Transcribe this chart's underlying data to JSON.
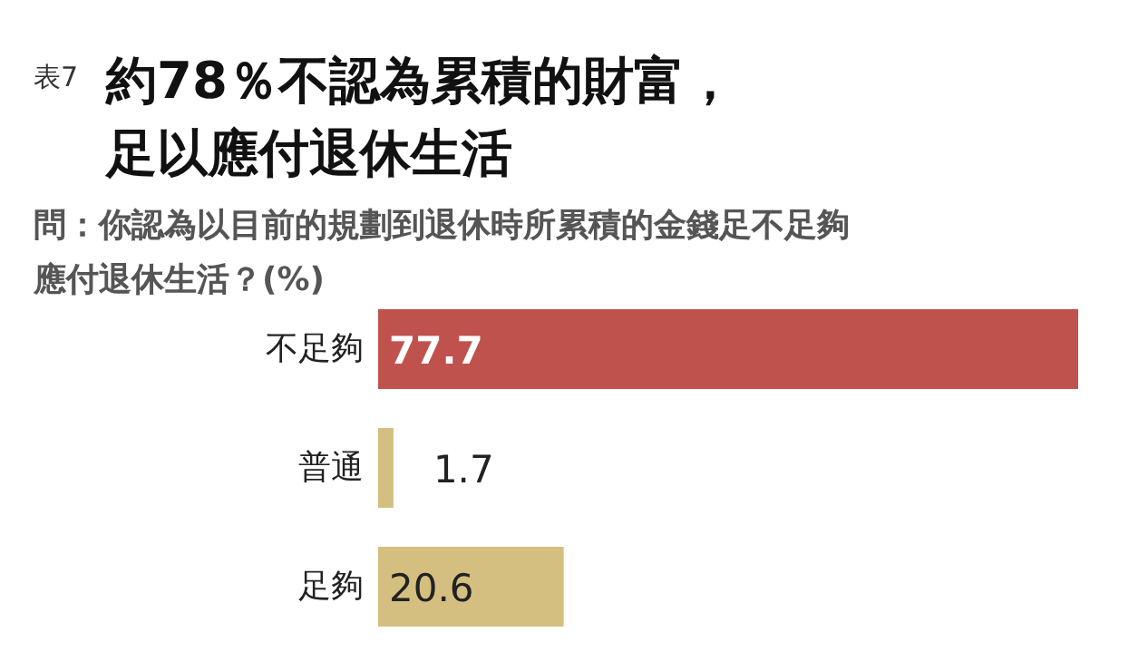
{
  "chart_data": {
    "type": "bar",
    "orientation": "horizontal",
    "title": "約78％不認為累積的財富，足以應付退休生活",
    "subtitle": "問：你認為以目前的規劃到退休時所累積的金錢足不足夠應付退休生活？(%)",
    "annotations": [
      "表7"
    ],
    "categories": [
      "不足夠",
      "普通",
      "足夠"
    ],
    "values": [
      77.7,
      1.7,
      20.6
    ],
    "colors": [
      "#c0524e",
      "#d4bf80",
      "#d4bf80"
    ],
    "data_labels": true
  }
}
